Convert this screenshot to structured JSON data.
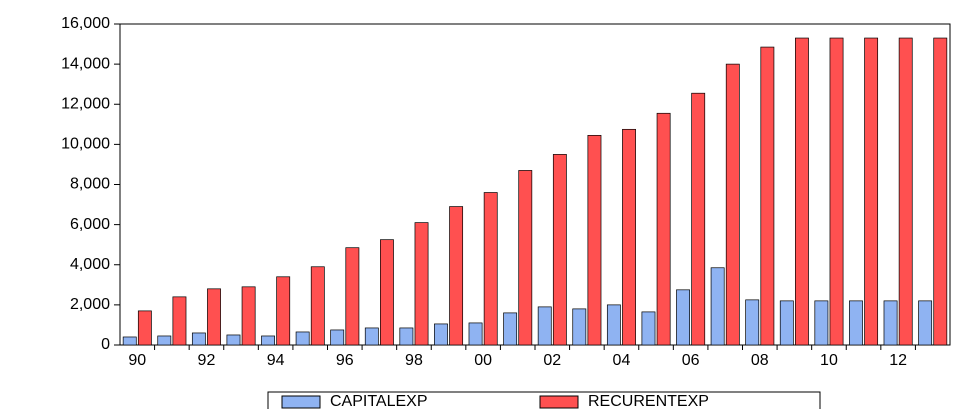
{
  "chart_data": {
    "type": "bar",
    "categories": [
      "90",
      null,
      "92",
      null,
      "94",
      null,
      "96",
      null,
      "98",
      null,
      "00",
      null,
      "02",
      null,
      "04",
      null,
      "06",
      null,
      "08",
      null,
      "10",
      null,
      "12",
      null
    ],
    "series": [
      {
        "name": "CAPITALEXP",
        "color": "#8fb3f2",
        "values": [
          400,
          450,
          600,
          500,
          450,
          650,
          750,
          850,
          850,
          1050,
          1100,
          1600,
          1900,
          1800,
          2000,
          1650,
          2750,
          3850,
          2250,
          2200,
          2200,
          2200,
          2200,
          2200
        ]
      },
      {
        "name": "RECURENTEXP",
        "color": "#ff5050",
        "values": [
          1700,
          2400,
          2800,
          2900,
          3400,
          3900,
          4850,
          5250,
          6100,
          6900,
          7600,
          8700,
          9500,
          10450,
          10750,
          11550,
          12550,
          14000,
          14850,
          15300,
          15300,
          15300,
          15300,
          15300
        ]
      }
    ],
    "ylim": [
      0,
      16000
    ],
    "yticks": [
      0,
      {
        "value": 2000,
        "label": "2,000"
      },
      {
        "value": 4000,
        "label": "4,000"
      },
      {
        "value": 6000,
        "label": "6,000"
      },
      {
        "value": 8000,
        "label": "8,000"
      },
      {
        "value": 10000,
        "label": "10,000"
      },
      {
        "value": 12000,
        "label": "12,000"
      },
      {
        "value": 14000,
        "label": "14,000"
      },
      {
        "value": 16000,
        "label": "16,000"
      }
    ],
    "legend": "bottom"
  }
}
